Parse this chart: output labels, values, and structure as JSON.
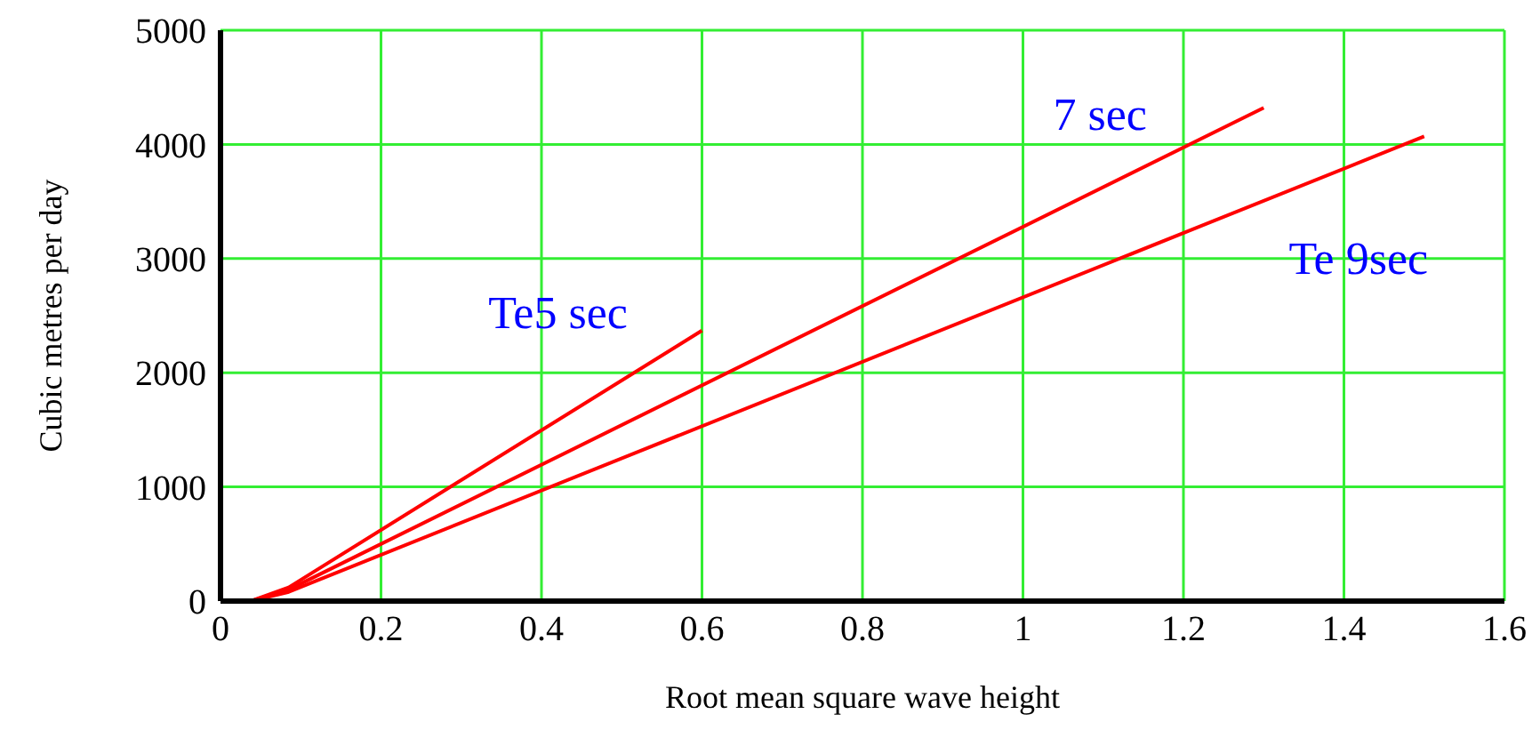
{
  "chart_data": {
    "type": "line",
    "xlabel": "Root mean square wave height",
    "ylabel": "Cubic metres per day",
    "xlim": [
      0,
      1.6
    ],
    "xticks": [
      0,
      0.2,
      0.4,
      0.6,
      0.8,
      1,
      1.2,
      1.4,
      1.6
    ],
    "ylim": [
      0,
      5000
    ],
    "yticks": [
      0,
      1000,
      2000,
      3000,
      4000,
      5000
    ],
    "grid": true,
    "marker": "none",
    "line_style": "solid",
    "series": [
      {
        "name": "Te5 sec",
        "color": "#ff0000",
        "x": [
          0.038,
          0.085,
          0.6
        ],
        "values": [
          0,
          120,
          2370
        ]
      },
      {
        "name": "7 sec",
        "color": "#ff0000",
        "x": [
          0.038,
          0.085,
          1.3
        ],
        "values": [
          0,
          100,
          4320
        ]
      },
      {
        "name": "Te 9sec",
        "color": "#ff0000",
        "x": [
          0.038,
          0.085,
          1.5
        ],
        "values": [
          0,
          80,
          4070
        ]
      }
    ]
  }
}
